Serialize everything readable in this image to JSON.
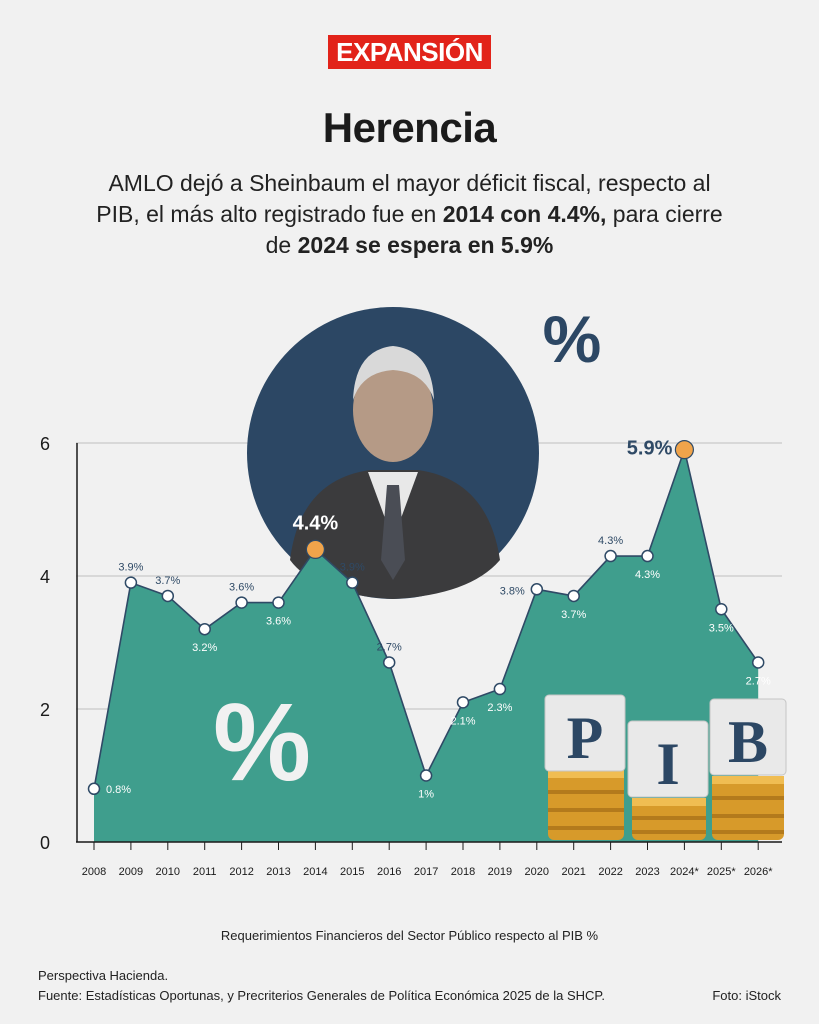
{
  "brand": "EXPANSIÓN",
  "title": "Herencia",
  "subtitle": {
    "line1": "AMLO dejó a Sheinbaum el mayor déficit fiscal, respecto al",
    "line2_pre": "PIB, el más alto registrado fue en ",
    "line2_bold": "2014 con 4.4%,",
    "line2_post": " para cierre",
    "line3_pre": "de ",
    "line3_bold": "2024 se espera en 5.9%"
  },
  "decor": {
    "percent_symbol": "%",
    "pib_letters": [
      "P",
      "I",
      "B"
    ]
  },
  "colors": {
    "area": "#3f9e8d",
    "line": "#2f4a66",
    "highlight": "#f0a44b",
    "circle": "#2c4764",
    "grid": "#c9c9c9"
  },
  "chart_data": {
    "type": "area",
    "categories": [
      "2008",
      "2009",
      "2010",
      "2011",
      "2012",
      "2013",
      "2014",
      "2015",
      "2016",
      "2017",
      "2018",
      "2019",
      "2020",
      "2021",
      "2022",
      "2023",
      "2024*",
      "2025*",
      "2026*"
    ],
    "values": [
      0.8,
      3.9,
      3.7,
      3.2,
      3.6,
      3.6,
      4.4,
      3.9,
      2.7,
      1.0,
      2.1,
      2.3,
      3.8,
      3.7,
      4.3,
      4.3,
      5.9,
      3.5,
      2.7
    ],
    "data_labels": [
      "0.8%",
      "3.9%",
      "3.7%",
      "3.2%",
      "3.6%",
      "3.6%",
      "4.4%",
      "3.9%",
      "2.7%",
      "1%",
      "2.1%",
      "2.3%",
      "3.8%",
      "3.7%",
      "4.3%",
      "4.3%",
      "5.9%",
      "3.5%",
      "2.7%"
    ],
    "highlighted": [
      "2014",
      "2024*"
    ],
    "yticks": [
      "0",
      "2",
      "4",
      "6"
    ],
    "ylim": [
      0,
      6
    ],
    "grid": true,
    "caption": "Requerimientos Financieros del Sector Público respecto al PIB %"
  },
  "footer": {
    "note": "Perspectiva Hacienda.",
    "source": "Fuente: Estadísticas Oportunas, y Precriterios Generales de Política Económica 2025 de la SHCP.",
    "photo_credit": "Foto: iStock"
  }
}
